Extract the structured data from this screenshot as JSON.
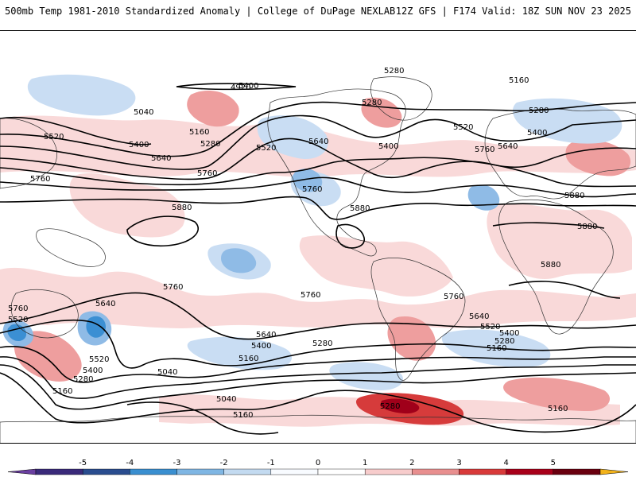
{
  "header": {
    "title_left": "500mb Temp 1981-2010 Standardized Anomaly | College of DuPage NEXLAB",
    "title_right": "12Z GFS | F174 Valid: 18Z SUN NOV 23 2025"
  },
  "contour_labels": [
    "4920",
    "5280",
    "5160",
    "5400",
    "5040",
    "5280",
    "5280",
    "5520",
    "5160",
    "5280",
    "5400",
    "5520",
    "5640",
    "5400",
    "5760",
    "5640",
    "5520",
    "5400",
    "5640",
    "5760",
    "5760",
    "5760",
    "5880",
    "5880",
    "5880",
    "5880",
    "5880",
    "5760",
    "5760",
    "5760",
    "5760",
    "5640",
    "5520",
    "5640",
    "5400",
    "5280",
    "5160",
    "5640",
    "5520",
    "5400",
    "5280",
    "5160",
    "5520",
    "5400",
    "5280",
    "5160",
    "5040",
    "5040",
    "5160",
    "5280",
    "5160"
  ],
  "colorbar": {
    "ticks": [
      "-5",
      "-4",
      "-3",
      "-2",
      "-1",
      "0",
      "1",
      "2",
      "3",
      "4",
      "5"
    ],
    "colors": [
      "#3a2a7a",
      "#2a4d8f",
      "#3a8fd0",
      "#7fb6e3",
      "#c3daf0",
      "#f8fbff",
      "#ffffff",
      "#f7cccc",
      "#e88f8f",
      "#d83a3a",
      "#a8001a",
      "#6a000f"
    ],
    "left_arrow_color": "#6a3fa0",
    "right_arrow_color": "#f2b21a"
  },
  "colors": {
    "cold_light": "#c9ddf3",
    "cold_mid": "#8fbbe6",
    "cold_strong": "#3b8fd3",
    "warm_light": "#f9d9d9",
    "warm_mid": "#ee9e9e",
    "warm_strong": "#d63b3b",
    "warm_extreme": "#a0001a",
    "contour": "#000000",
    "coast": "#333333"
  }
}
